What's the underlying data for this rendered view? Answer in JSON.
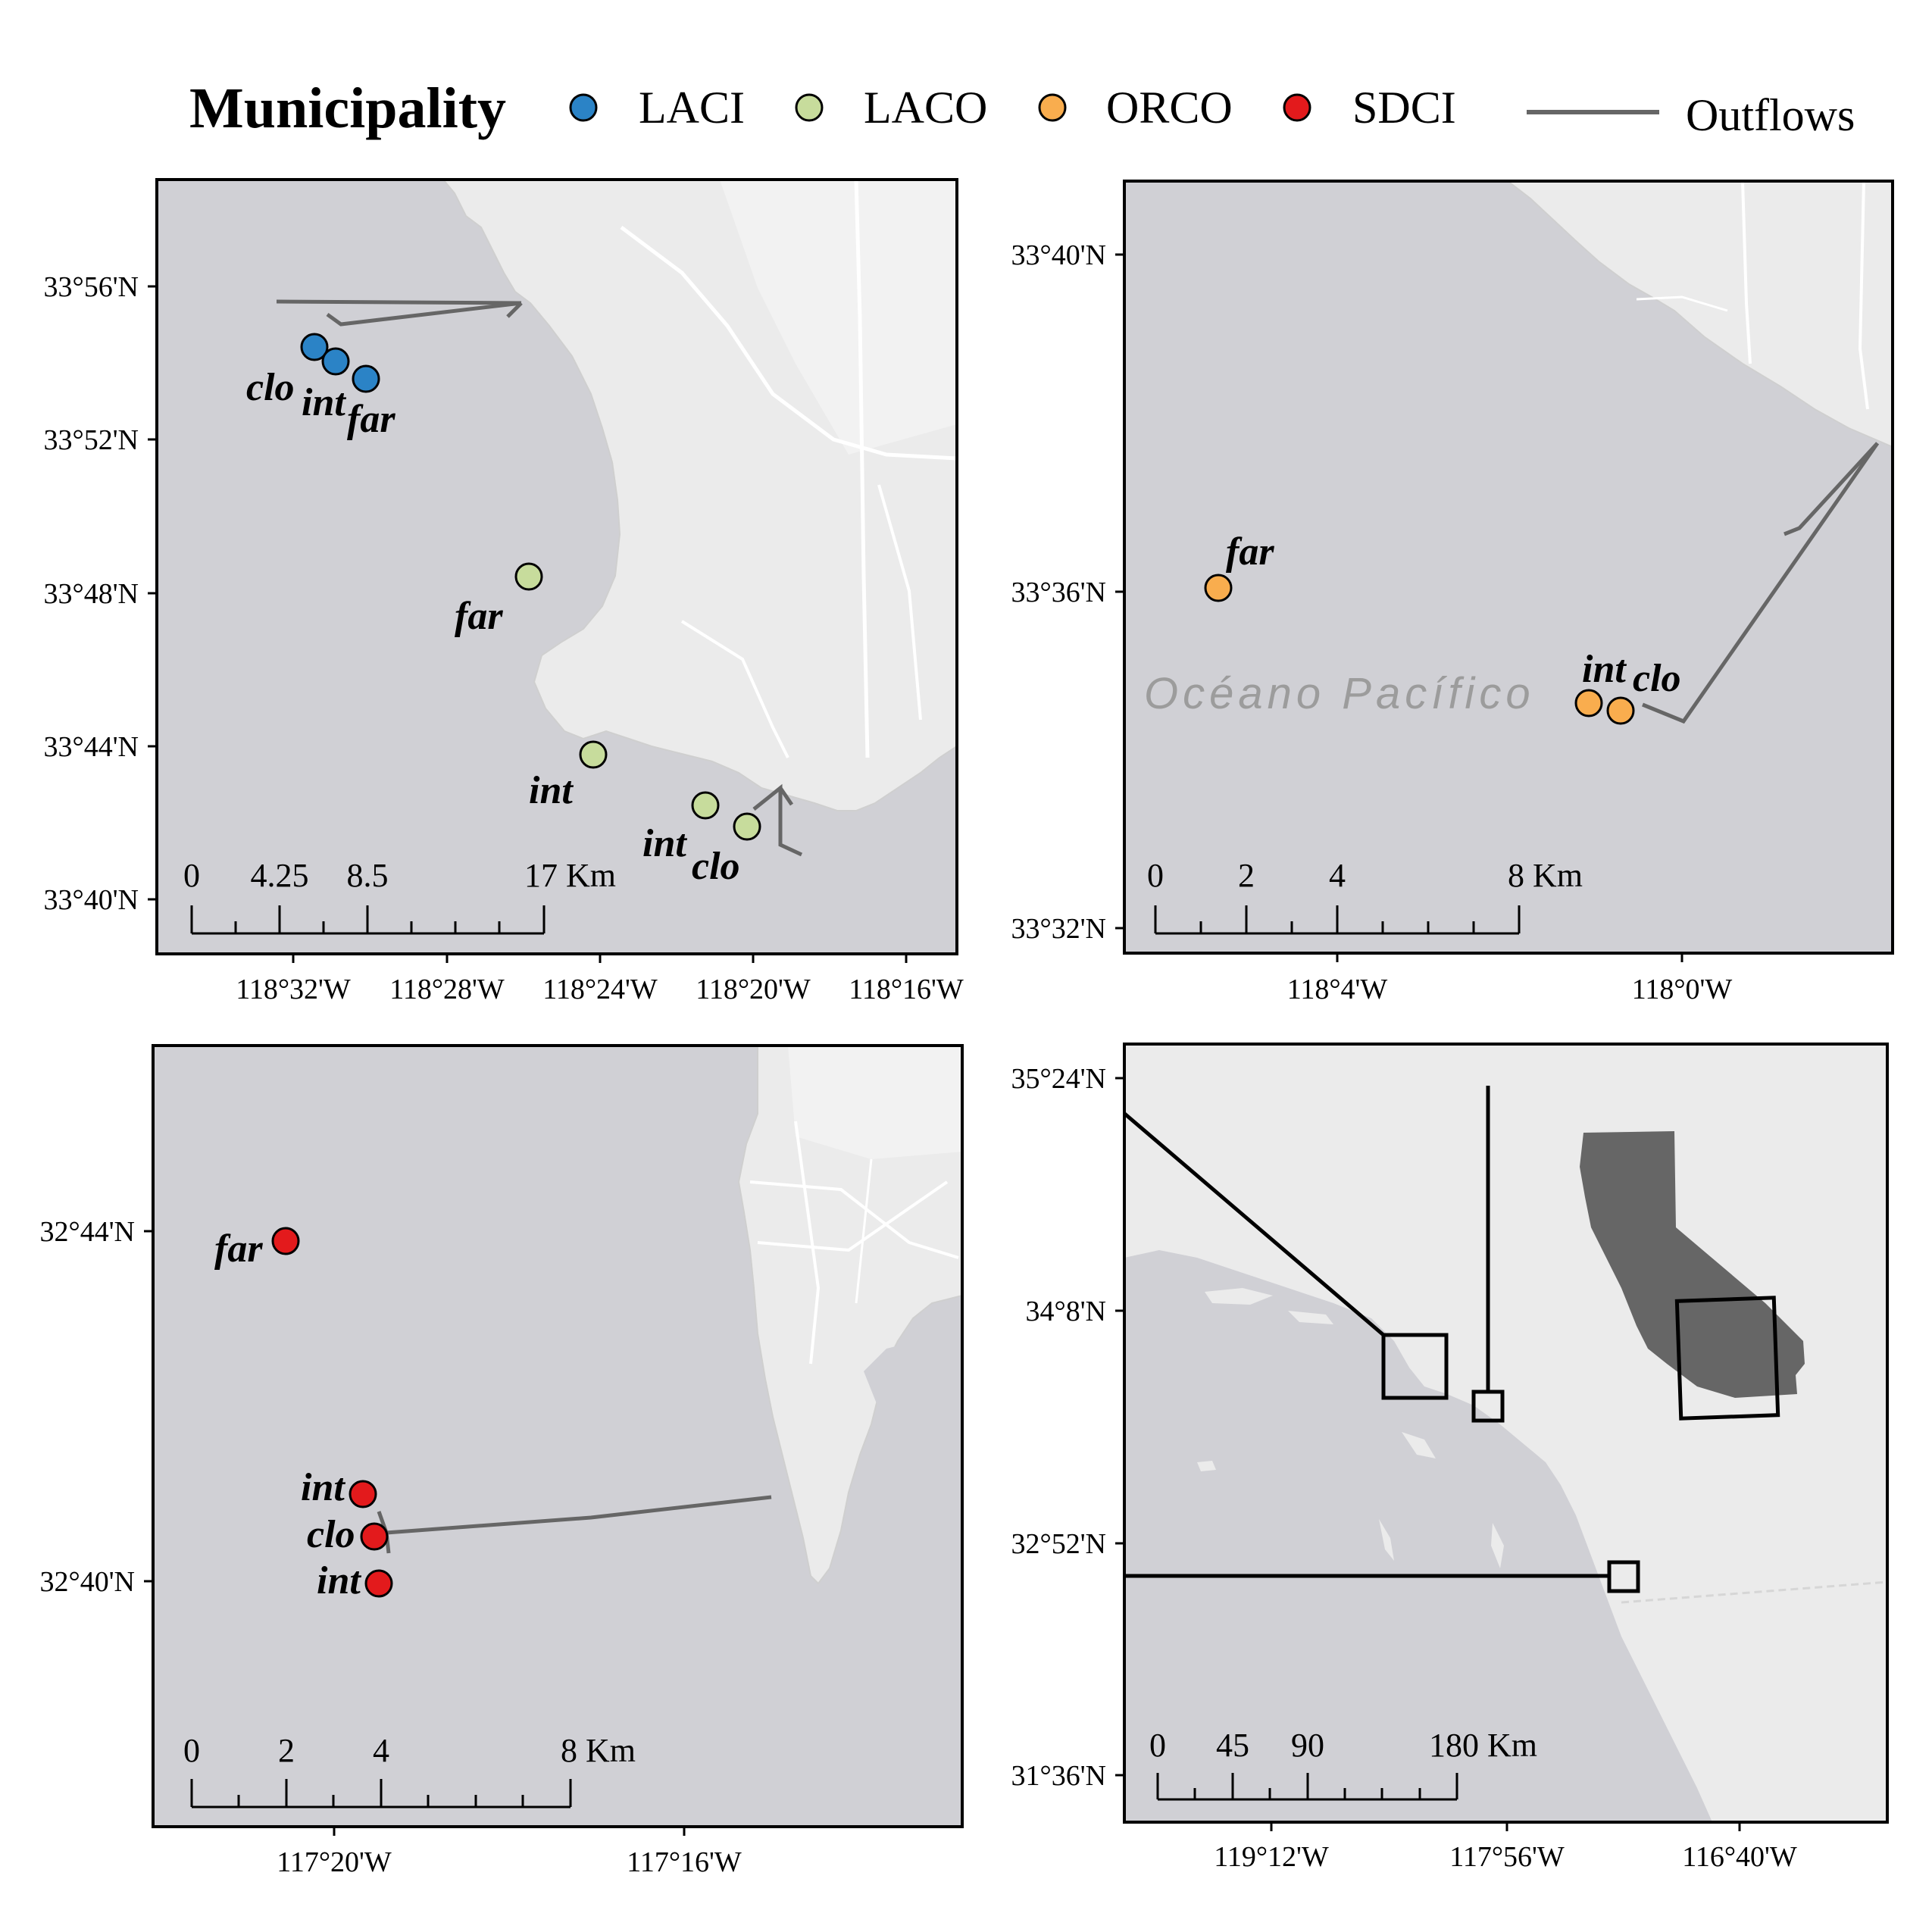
{
  "legend": {
    "title": "Municipality",
    "items": [
      {
        "label": "LACI",
        "color": "#2b83c6"
      },
      {
        "label": "LACO",
        "color": "#c7dc9c"
      },
      {
        "label": "ORCO",
        "color": "#f9ad4e"
      },
      {
        "label": "SDCI",
        "color": "#e31a1c"
      }
    ],
    "outflows_label": "Outflows",
    "outflow_color": "#666666"
  },
  "colors": {
    "ocean": "#d0d0d5",
    "land": "#ebebeb",
    "land_alt": "#f2f2f2",
    "frame": "#000000",
    "california": "#666666"
  },
  "panels": {
    "laci_laco": {
      "lat_labels": [
        "33°56'N",
        "33°52'N",
        "33°48'N",
        "33°44'N",
        "33°40'N"
      ],
      "lon_labels": [
        "118°32'W",
        "118°28'W",
        "118°24'W",
        "118°20'W",
        "118°16'W"
      ],
      "scale_labels": [
        "0",
        "4.25",
        "8.5",
        "17 Km"
      ],
      "sites": [
        "clo",
        "int",
        "far",
        "far",
        "int",
        "int",
        "clo"
      ]
    },
    "orco": {
      "lat_labels": [
        "33°40'N",
        "33°36'N",
        "33°32'N"
      ],
      "lon_labels": [
        "118°4'W",
        "118°0'W"
      ],
      "scale_labels": [
        "0",
        "2",
        "4",
        "8 Km"
      ],
      "ocean_label": "Océano Pacífico",
      "sites": [
        "far",
        "int",
        "clo"
      ]
    },
    "sdci": {
      "lat_labels": [
        "32°44'N",
        "32°40'N"
      ],
      "lon_labels": [
        "117°20'W",
        "117°16'W"
      ],
      "scale_labels": [
        "0",
        "2",
        "4",
        "8 Km"
      ],
      "sites": [
        "far",
        "int",
        "clo",
        "int"
      ]
    },
    "overview": {
      "lat_labels": [
        "35°24'N",
        "34°8'N",
        "32°52'N",
        "31°36'N"
      ],
      "lon_labels": [
        "119°12'W",
        "117°56'W",
        "116°40'W"
      ],
      "scale_labels": [
        "0",
        "45",
        "90",
        "180 Km"
      ]
    }
  }
}
